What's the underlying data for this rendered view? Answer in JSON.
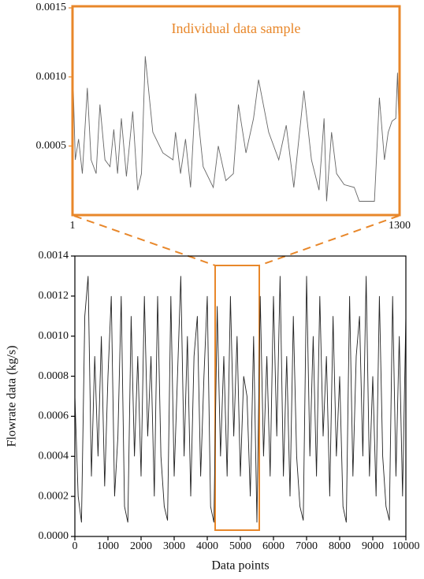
{
  "chart_data": [
    {
      "type": "line",
      "title": "Individual data sample",
      "frame_color": "#e8872a",
      "color": "#666666",
      "x": [
        1,
        12,
        25,
        40,
        60,
        75,
        95,
        110,
        130,
        150,
        165,
        180,
        195,
        215,
        240,
        260,
        275,
        290,
        320,
        360,
        400,
        410,
        430,
        450,
        470,
        490,
        520,
        560,
        580,
        610,
        640,
        660,
        690,
        720,
        740,
        780,
        820,
        850,
        880,
        920,
        950,
        980,
        1000,
        1010,
        1030,
        1050,
        1080,
        1120,
        1140,
        1200,
        1220,
        1240,
        1255,
        1270,
        1285,
        1292,
        1300
      ],
      "values": [
        0.00112,
        0.0004,
        0.00055,
        0.0003,
        0.00092,
        0.0004,
        0.0003,
        0.0008,
        0.0004,
        0.00035,
        0.00062,
        0.0003,
        0.0007,
        0.00028,
        0.00075,
        0.00018,
        0.0003,
        0.00115,
        0.0006,
        0.00045,
        0.0004,
        0.0006,
        0.0003,
        0.00055,
        0.0002,
        0.00088,
        0.00035,
        0.0002,
        0.0005,
        0.00025,
        0.0003,
        0.0008,
        0.00045,
        0.0007,
        0.00098,
        0.0006,
        0.0004,
        0.00065,
        0.0002,
        0.0009,
        0.0004,
        0.00018,
        0.0007,
        0.0001,
        0.0006,
        0.0003,
        0.00022,
        0.0002,
        0.0001,
        0.0001,
        0.00085,
        0.0004,
        0.0006,
        0.00068,
        0.0007,
        0.00103,
        0.0005
      ],
      "xlim": [
        1,
        1300
      ],
      "xticks": [
        1,
        1300
      ],
      "ylim": [
        0,
        0.0015
      ],
      "yticks": [
        0.0005,
        {
          "value": 0.001,
          "label": "0.0010"
        },
        0.0015
      ]
    },
    {
      "type": "line",
      "xlabel": "Data points",
      "ylabel": "Flowrate data (kg/s)",
      "color": "#222222",
      "frame_color": "#000000",
      "x": [
        0,
        100,
        200,
        300,
        400,
        500,
        600,
        700,
        800,
        900,
        1000,
        1100,
        1200,
        1300,
        1400,
        1500,
        1600,
        1700,
        1800,
        1900,
        2000,
        2100,
        2200,
        2300,
        2400,
        2500,
        2600,
        2700,
        2800,
        2900,
        3000,
        3100,
        3200,
        3300,
        3400,
        3500,
        3600,
        3700,
        3800,
        3900,
        4000,
        4100,
        4200,
        4300,
        4400,
        4500,
        4600,
        4700,
        4800,
        4900,
        5000,
        5100,
        5200,
        5300,
        5400,
        5500,
        5600,
        5700,
        5800,
        5900,
        6000,
        6100,
        6200,
        6300,
        6400,
        6500,
        6600,
        6700,
        6800,
        6900,
        7000,
        7100,
        7200,
        7300,
        7400,
        7500,
        7600,
        7700,
        7800,
        7900,
        8000,
        8100,
        8200,
        8300,
        8400,
        8500,
        8600,
        8700,
        8800,
        8900,
        9000,
        9100,
        9200,
        9300,
        9400,
        9500,
        9600,
        9700,
        9800,
        9900,
        10000
      ],
      "values": [
        0.0007,
        0.0002,
        7e-05,
        0.0011,
        0.0013,
        0.0003,
        0.0009,
        0.0004,
        0.001,
        0.00025,
        0.0008,
        0.0012,
        0.0002,
        0.0005,
        0.0012,
        0.00015,
        7e-05,
        0.0011,
        0.0004,
        0.0009,
        0.0003,
        0.0012,
        0.0005,
        0.0009,
        0.0002,
        0.0012,
        0.0004,
        0.00015,
        8e-05,
        0.0012,
        0.0003,
        0.0008,
        0.0013,
        0.0004,
        0.001,
        0.0002,
        0.0009,
        0.0011,
        0.0003,
        0.0008,
        0.0012,
        0.00015,
        7e-05,
        0.00115,
        0.0004,
        0.0009,
        0.0003,
        0.0012,
        0.0005,
        0.001,
        0.0003,
        0.0008,
        0.0007,
        0.0002,
        0.001,
        7e-05,
        0.0012,
        0.0004,
        0.0009,
        0.0003,
        0.0012,
        0.0005,
        0.0013,
        0.0003,
        0.0009,
        0.0002,
        0.0011,
        0.0004,
        0.00015,
        8e-05,
        0.0013,
        0.0004,
        0.001,
        0.0003,
        0.0012,
        0.0005,
        0.0009,
        0.0002,
        0.0011,
        0.0004,
        0.0008,
        0.00015,
        7e-05,
        0.0012,
        0.0003,
        0.0009,
        0.0011,
        0.0004,
        0.0013,
        0.0003,
        0.0008,
        0.0002,
        0.0012,
        0.0004,
        0.00015,
        8e-05,
        0.0012,
        0.0003,
        0.001,
        0.0002,
        0.0011
      ],
      "xlim": [
        0,
        10000
      ],
      "xticks": [
        0,
        1000,
        2000,
        3000,
        4000,
        5000,
        6000,
        7000,
        8000,
        9000,
        10000
      ],
      "ylim": [
        0,
        0.0014
      ],
      "yticks": [
        {
          "value": 0,
          "label": "0.0000"
        },
        0.0002,
        0.0004,
        0.0006,
        0.0008,
        {
          "value": 0.001,
          "label": "0.0010"
        },
        0.0012,
        0.0014
      ]
    }
  ]
}
